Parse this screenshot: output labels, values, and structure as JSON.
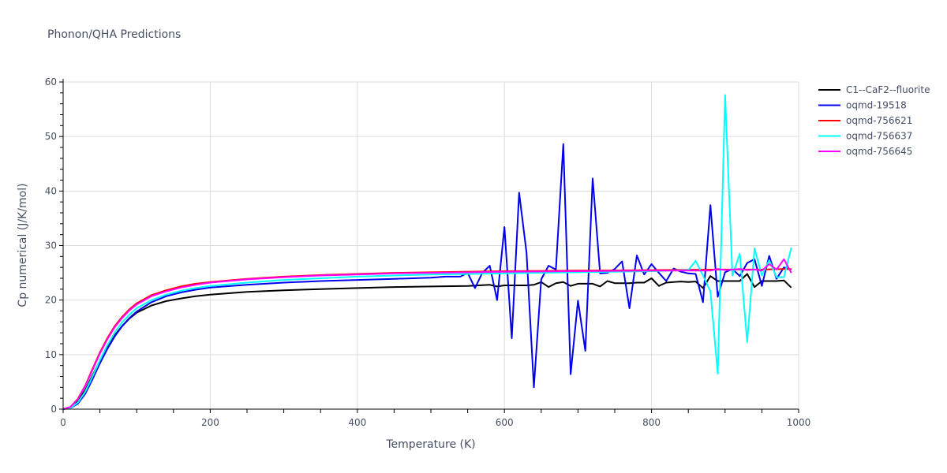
{
  "title": "Phonon/QHA Predictions",
  "chart_data": {
    "type": "line",
    "title": "Phonon/QHA Predictions",
    "xlabel": "Temperature (K)",
    "ylabel": "Cp numerical (J/K/mol)",
    "xlim": [
      0,
      1000
    ],
    "ylim": [
      0,
      60
    ],
    "xticks": [
      0,
      200,
      400,
      600,
      800,
      1000
    ],
    "yticks": [
      0,
      10,
      20,
      30,
      40,
      50,
      60
    ],
    "grid": true,
    "legend_position": "right",
    "series": [
      {
        "name": "C1--CaF2--fluorite",
        "color": "#000000",
        "x": [
          0,
          10,
          20,
          30,
          40,
          50,
          60,
          70,
          80,
          90,
          100,
          120,
          140,
          160,
          180,
          200,
          250,
          300,
          350,
          400,
          450,
          500,
          550,
          580,
          590,
          600,
          610,
          620,
          630,
          640,
          650,
          660,
          670,
          680,
          690,
          700,
          710,
          720,
          730,
          740,
          750,
          760,
          770,
          780,
          790,
          800,
          810,
          820,
          830,
          840,
          850,
          860,
          870,
          880,
          890,
          900,
          910,
          920,
          930,
          940,
          950,
          960,
          970,
          980,
          990
        ],
        "y": [
          0,
          0.3,
          1.5,
          3.5,
          6.2,
          8.9,
          11.4,
          13.5,
          15.2,
          16.6,
          17.7,
          19.0,
          19.8,
          20.3,
          20.7,
          21.0,
          21.5,
          21.8,
          22.0,
          22.2,
          22.4,
          22.5,
          22.6,
          22.8,
          22.5,
          22.7,
          22.7,
          22.7,
          22.7,
          22.8,
          23.3,
          22.4,
          23.1,
          23.3,
          22.6,
          23.0,
          23.0,
          23.0,
          22.5,
          23.5,
          23.1,
          23.1,
          23.1,
          23.2,
          23.2,
          24.0,
          22.6,
          23.2,
          23.3,
          23.4,
          23.3,
          23.4,
          22.2,
          24.4,
          23.5,
          23.5,
          23.5,
          23.5,
          24.8,
          22.4,
          23.5,
          23.5,
          23.5,
          23.6,
          22.3
        ]
      },
      {
        "name": "oqmd-19518",
        "color": "#0000ee",
        "x": [
          0,
          10,
          20,
          30,
          40,
          50,
          60,
          70,
          80,
          90,
          100,
          120,
          140,
          160,
          180,
          200,
          250,
          300,
          350,
          400,
          450,
          500,
          520,
          540,
          550,
          560,
          570,
          580,
          590,
          600,
          610,
          620,
          630,
          640,
          650,
          660,
          670,
          680,
          690,
          700,
          710,
          720,
          730,
          740,
          750,
          760,
          770,
          780,
          790,
          800,
          810,
          820,
          830,
          840,
          850,
          860,
          870,
          880,
          890,
          900,
          910,
          920,
          930,
          940,
          950,
          960,
          970,
          980,
          990
        ],
        "y": [
          0,
          0.2,
          1.0,
          2.8,
          5.5,
          8.4,
          11.0,
          13.3,
          15.2,
          16.7,
          17.9,
          19.6,
          20.7,
          21.4,
          21.9,
          22.3,
          22.8,
          23.2,
          23.5,
          23.7,
          23.9,
          24.1,
          24.3,
          24.3,
          25.0,
          22.2,
          25.0,
          26.3,
          20.0,
          33.4,
          13.0,
          39.7,
          28.7,
          4.0,
          23.8,
          26.3,
          25.6,
          48.6,
          6.4,
          19.9,
          10.7,
          42.3,
          24.9,
          25.0,
          25.7,
          27.1,
          18.5,
          28.2,
          24.7,
          26.6,
          25.0,
          23.5,
          25.8,
          25.2,
          24.9,
          24.8,
          19.6,
          37.4,
          20.6,
          25.1,
          25.7,
          24.4,
          26.8,
          27.5,
          22.6,
          28.1,
          23.9,
          26.0,
          25.6
        ]
      },
      {
        "name": "oqmd-756621",
        "color": "#ff0000",
        "x": [
          0,
          10,
          20,
          30,
          40,
          50,
          60,
          70,
          80,
          90,
          100,
          120,
          140,
          160,
          180,
          200,
          250,
          300,
          350,
          400,
          450,
          500,
          600,
          700,
          800,
          900,
          950,
          980,
          990
        ],
        "y": [
          0,
          0.4,
          1.9,
          4.3,
          7.4,
          10.4,
          13.0,
          15.2,
          16.9,
          18.3,
          19.4,
          20.9,
          21.8,
          22.5,
          23.0,
          23.3,
          23.9,
          24.3,
          24.6,
          24.8,
          25.0,
          25.1,
          25.3,
          25.4,
          25.5,
          25.6,
          25.6,
          25.7,
          25.7
        ]
      },
      {
        "name": "oqmd-756637",
        "color": "#00ffff",
        "x": [
          0,
          10,
          20,
          30,
          40,
          50,
          60,
          70,
          80,
          90,
          100,
          120,
          140,
          160,
          180,
          200,
          250,
          300,
          350,
          400,
          450,
          500,
          600,
          700,
          800,
          850,
          860,
          870,
          880,
          890,
          900,
          910,
          920,
          930,
          940,
          950,
          960,
          970,
          980,
          990
        ],
        "y": [
          0,
          0.2,
          1.2,
          3.2,
          6.0,
          9.0,
          11.7,
          14.0,
          15.9,
          17.3,
          18.5,
          20.0,
          21.0,
          21.7,
          22.2,
          22.6,
          23.2,
          23.7,
          24.0,
          24.3,
          24.5,
          24.7,
          24.9,
          25.1,
          25.3,
          25.5,
          27.2,
          24.5,
          21.6,
          6.5,
          57.6,
          24.5,
          28.5,
          12.3,
          29.5,
          24.5,
          27.3,
          24.2,
          24.2,
          29.6
        ]
      },
      {
        "name": "oqmd-756645",
        "color": "#ff00ff",
        "x": [
          0,
          10,
          20,
          30,
          40,
          50,
          60,
          70,
          80,
          90,
          100,
          120,
          140,
          160,
          180,
          200,
          250,
          300,
          350,
          400,
          450,
          500,
          600,
          700,
          800,
          880,
          890,
          900,
          910,
          920,
          930,
          940,
          950,
          960,
          970,
          980,
          990
        ],
        "y": [
          0,
          0.4,
          1.8,
          4.2,
          7.2,
          10.2,
          12.8,
          15.0,
          16.7,
          18.1,
          19.2,
          20.7,
          21.6,
          22.3,
          22.8,
          23.2,
          23.8,
          24.2,
          24.5,
          24.7,
          24.9,
          25.0,
          25.2,
          25.3,
          25.4,
          25.4,
          25.7,
          25.5,
          25.6,
          25.7,
          25.5,
          25.6,
          25.4,
          26.6,
          25.6,
          27.5,
          25.0
        ]
      }
    ]
  },
  "legend": {
    "items": [
      {
        "label": "C1--CaF2--fluorite",
        "color": "#000000"
      },
      {
        "label": "oqmd-19518",
        "color": "#0000ee"
      },
      {
        "label": "oqmd-756621",
        "color": "#ff0000"
      },
      {
        "label": "oqmd-756637",
        "color": "#00ffff"
      },
      {
        "label": "oqmd-756645",
        "color": "#ff00ff"
      }
    ]
  }
}
